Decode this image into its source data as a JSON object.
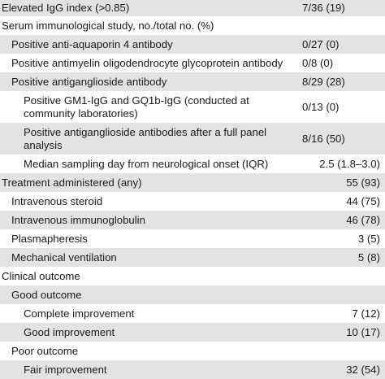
{
  "rows": [
    {
      "label": "Elevated IgG index (>0.85)",
      "value": "7/36 (19)"
    },
    {
      "label": "Serum immunological study, no./total no. (%)",
      "value": ""
    },
    {
      "label": "Positive anti-aquaporin 4 antibody",
      "value": "0/27 (0)"
    },
    {
      "label": "Positive antimyelin oligodendrocyte glycoprotein antibody",
      "value": "0/8 (0)"
    },
    {
      "label": "Positive antiganglioside antibody",
      "value": "8/29 (28)"
    },
    {
      "label": "Positive GM1-IgG and GQ1b-IgG (conducted at community laboratories)",
      "value": "0/13 (0)"
    },
    {
      "label": "Positive antiganglioside antibodies after a full panel analysis",
      "value": "8/16 (50)"
    },
    {
      "label": "Median sampling day from neurological onset (IQR)",
      "value": "2.5 (1.8–3.0)"
    },
    {
      "label": "Treatment administered (any)",
      "value": "55 (93)"
    },
    {
      "label": "Intravenous steroid",
      "value": "44 (75)"
    },
    {
      "label": "Intravenous immunoglobulin",
      "value": "46 (78)"
    },
    {
      "label": "Plasmapheresis",
      "value": "3 (5)"
    },
    {
      "label": "Mechanical ventilation",
      "value": "5 (8)"
    },
    {
      "label": "Clinical outcome",
      "value": ""
    },
    {
      "label": "Good outcome",
      "value": ""
    },
    {
      "label": "Complete improvement",
      "value": "7 (12)"
    },
    {
      "label": "Good improvement",
      "value": "10 (17)"
    },
    {
      "label": "Poor outcome",
      "value": ""
    },
    {
      "label": "Fair improvement",
      "value": "32 (54)"
    }
  ]
}
